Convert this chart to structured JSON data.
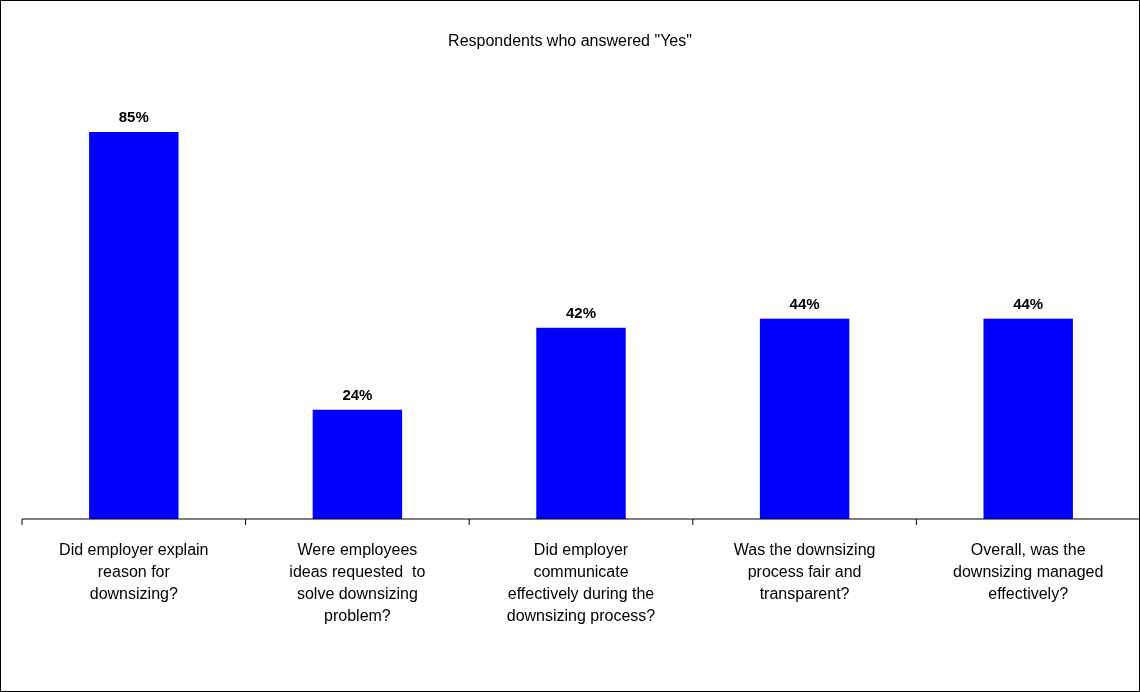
{
  "chart_data": {
    "type": "bar",
    "title": "Respondents who answered \"Yes\"",
    "categories": [
      "Did employer explain reason for downsizing?",
      "Were employees ideas requested  to solve downsizing problem?",
      "Did employer communicate effectively during the downsizing process?",
      "Was the downsizing process fair and transparent?",
      "Overall, was the downsizing managed effectively?"
    ],
    "values": [
      85,
      24,
      42,
      44,
      44
    ],
    "value_labels": [
      "85%",
      "24%",
      "42%",
      "44%",
      "44%"
    ],
    "color": "#0000ff"
  }
}
